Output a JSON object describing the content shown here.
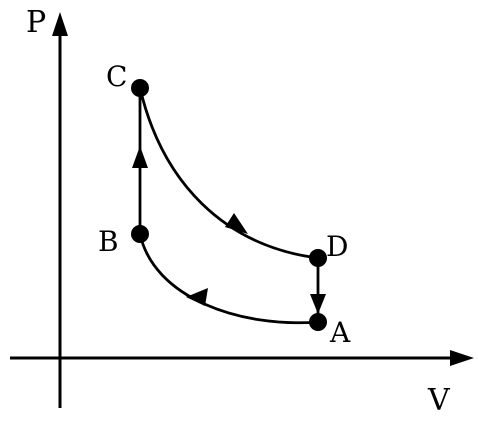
{
  "diagram": {
    "axes": {
      "y_label": "P",
      "x_label": "V"
    },
    "points": {
      "a": "A",
      "b": "B",
      "c": "C",
      "d": "D"
    },
    "colors": {
      "ink": "#000000",
      "background": "#ffffff"
    }
  }
}
